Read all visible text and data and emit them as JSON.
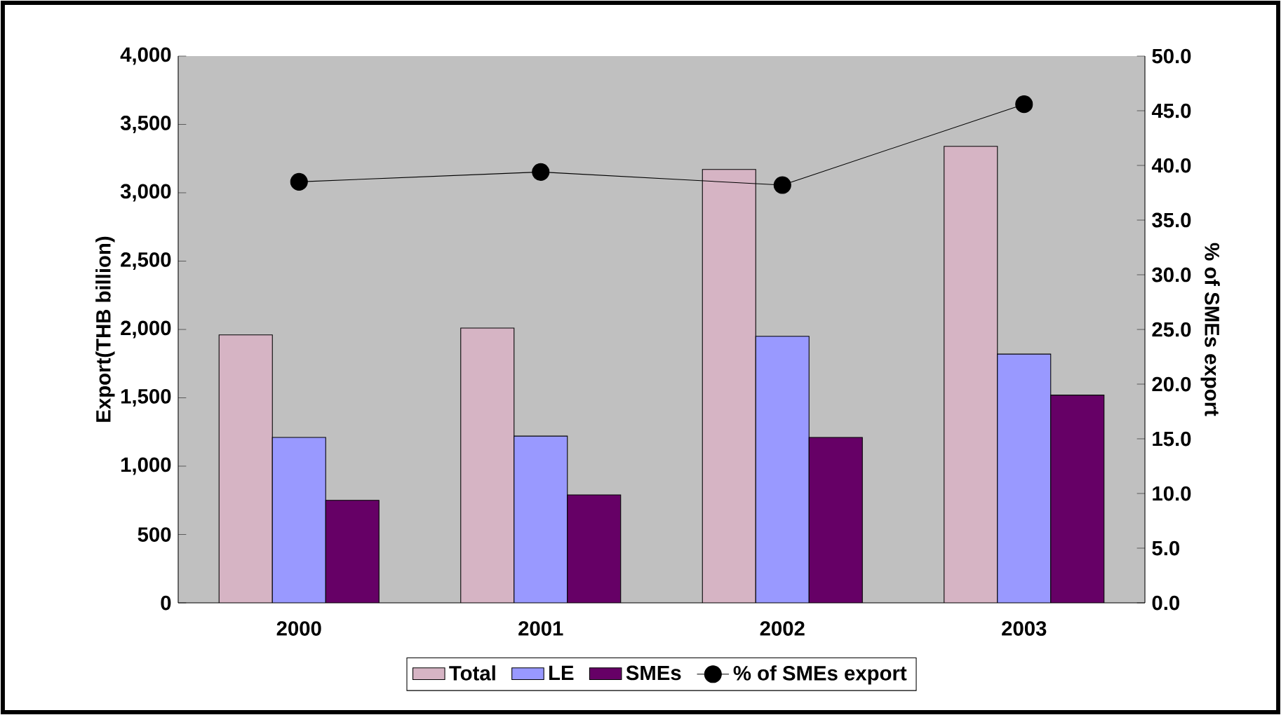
{
  "chart_data": {
    "type": "bar",
    "ylabel": "Export(THB billion)",
    "y2label": "% of SMEs export",
    "categories": [
      "2000",
      "2001",
      "2002",
      "2003"
    ],
    "series": [
      {
        "name": "Total",
        "color": "#d6b4c4",
        "values": [
          1960,
          2010,
          3170,
          3340
        ]
      },
      {
        "name": "LE",
        "color": "#9999ff",
        "values": [
          1210,
          1220,
          1950,
          1820
        ]
      },
      {
        "name": "SMEs",
        "color": "#660066",
        "values": [
          750,
          790,
          1210,
          1520
        ]
      },
      {
        "name": "% of SMEs export",
        "type": "line",
        "axis": "y2",
        "color": "#000000",
        "marker": "circle",
        "values": [
          38.5,
          39.4,
          38.2,
          45.6
        ]
      }
    ],
    "ylim": [
      0,
      4000
    ],
    "yticks": [
      0,
      500,
      {
        "value": 1000,
        "label": "1,000"
      },
      {
        "value": 1500,
        "label": "1,500"
      },
      {
        "value": 2000,
        "label": "2,000"
      },
      {
        "value": 2500,
        "label": "2,500"
      },
      {
        "value": 3000,
        "label": "3,000"
      },
      {
        "value": 3500,
        "label": "3,500"
      },
      {
        "value": 4000,
        "label": "4,000"
      }
    ],
    "y2lim": [
      0,
      50
    ],
    "y2ticks": [
      {
        "value": 0,
        "label": "0.0"
      },
      {
        "value": 5,
        "label": "5.0"
      },
      {
        "value": 10,
        "label": "10.0"
      },
      {
        "value": 15,
        "label": "15.0"
      },
      {
        "value": 20,
        "label": "20.0"
      },
      {
        "value": 25,
        "label": "25.0"
      },
      {
        "value": 30,
        "label": "30.0"
      },
      {
        "value": 35,
        "label": "35.0"
      },
      {
        "value": 40,
        "label": "40.0"
      },
      {
        "value": 45,
        "label": "45.0"
      },
      {
        "value": 50,
        "label": "50.0"
      }
    ],
    "grid": false,
    "legend": "bottom"
  }
}
